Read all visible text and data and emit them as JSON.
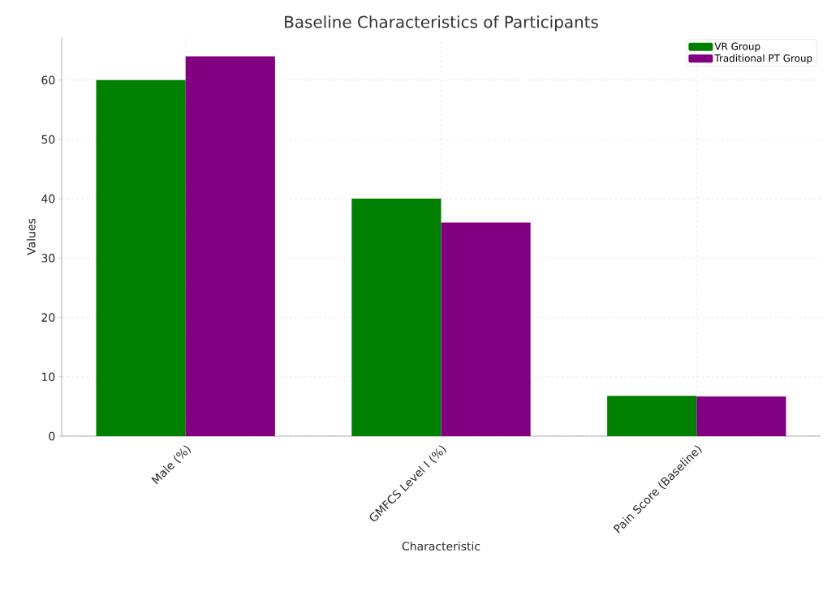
{
  "chart_data": {
    "type": "bar",
    "title": "Baseline Characteristics of Participants",
    "xlabel": "Characteristic",
    "ylabel": "Values",
    "categories": [
      "Male (%)",
      "GMFCS Level I (%)",
      "Pain Score (Baseline)"
    ],
    "series": [
      {
        "name": "VR Group",
        "color": "#008000",
        "values": [
          60,
          40,
          6.8
        ]
      },
      {
        "name": "Traditional PT Group",
        "color": "#800080",
        "values": [
          64,
          36,
          6.7
        ]
      }
    ],
    "ylim": [
      0,
      67.2
    ],
    "yticks": [
      0,
      10,
      20,
      30,
      40,
      50,
      60
    ],
    "grid": true,
    "legend": "top right"
  }
}
